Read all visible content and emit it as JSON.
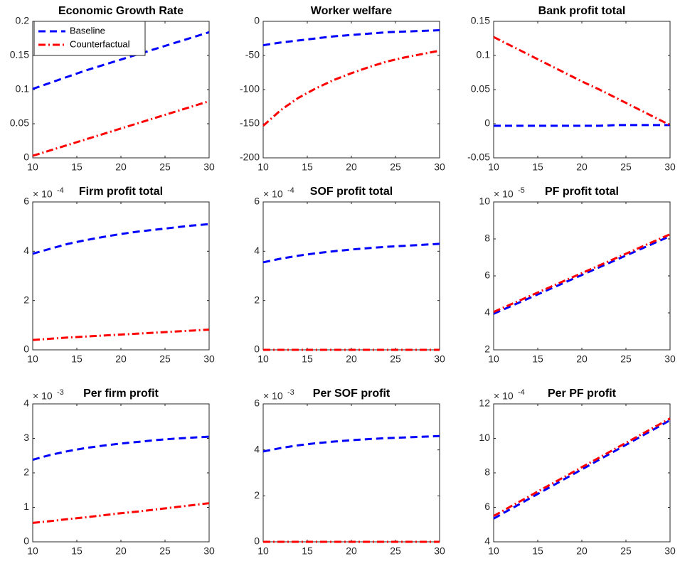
{
  "chart_data": [
    {
      "type": "line",
      "title": "Economic Growth Rate",
      "x": [
        10,
        12,
        14,
        16,
        18,
        20,
        22,
        24,
        26,
        28,
        30
      ],
      "xlim": [
        10,
        30
      ],
      "xticks": [
        10,
        15,
        20,
        25,
        30
      ],
      "ylim": [
        0,
        0.2
      ],
      "yticks": [
        0,
        0.05,
        0.1,
        0.15,
        0.2
      ],
      "legend": "northwest",
      "series": [
        {
          "name": "Baseline",
          "color": "#0000ff",
          "dash": "dashed",
          "values": [
            0.101,
            0.11,
            0.119,
            0.128,
            0.136,
            0.144,
            0.152,
            0.16,
            0.168,
            0.176,
            0.184
          ]
        },
        {
          "name": "Counterfactual",
          "color": "#ff0000",
          "dash": "dashdot",
          "values": [
            0.003,
            0.011,
            0.019,
            0.027,
            0.035,
            0.043,
            0.051,
            0.059,
            0.067,
            0.075,
            0.083
          ]
        }
      ]
    },
    {
      "type": "line",
      "title": "Worker welfare",
      "x": [
        10,
        12,
        14,
        16,
        18,
        20,
        22,
        24,
        26,
        28,
        30
      ],
      "xlim": [
        10,
        30
      ],
      "xticks": [
        10,
        15,
        20,
        25,
        30
      ],
      "ylim": [
        -200,
        0
      ],
      "yticks": [
        -200,
        -150,
        -100,
        -50,
        0
      ],
      "series": [
        {
          "color": "#0000ff",
          "dash": "dashed",
          "values": [
            -35,
            -31,
            -28,
            -25,
            -22,
            -20,
            -18,
            -16,
            -15,
            -14,
            -13
          ]
        },
        {
          "color": "#ff0000",
          "dash": "dashdot",
          "values": [
            -153,
            -130,
            -112,
            -98,
            -86,
            -76,
            -67,
            -59,
            -53,
            -48,
            -43
          ]
        }
      ]
    },
    {
      "type": "line",
      "title": "Bank profit total",
      "x": [
        10,
        12,
        14,
        16,
        18,
        20,
        22,
        24,
        26,
        28,
        30
      ],
      "xlim": [
        10,
        30
      ],
      "xticks": [
        10,
        15,
        20,
        25,
        30
      ],
      "ylim": [
        -0.05,
        0.15
      ],
      "yticks": [
        -0.05,
        0,
        0.05,
        0.1,
        0.15
      ],
      "series": [
        {
          "color": "#0000ff",
          "dash": "dashed",
          "values": [
            -0.003,
            -0.003,
            -0.003,
            -0.003,
            -0.003,
            -0.003,
            -0.003,
            -0.002,
            -0.002,
            -0.002,
            -0.002
          ]
        },
        {
          "color": "#ff0000",
          "dash": "dashdot",
          "values": [
            0.127,
            0.114,
            0.101,
            0.088,
            0.075,
            0.062,
            0.05,
            0.037,
            0.024,
            0.011,
            -0.002
          ]
        }
      ]
    },
    {
      "type": "line",
      "title": "Firm profit total",
      "y_multiplier": {
        "base": "× 10",
        "exponent": "-4"
      },
      "x": [
        10,
        12,
        14,
        16,
        18,
        20,
        22,
        24,
        26,
        28,
        30
      ],
      "xlim": [
        10,
        30
      ],
      "xticks": [
        10,
        15,
        20,
        25,
        30
      ],
      "ylim": [
        0,
        6
      ],
      "yticks": [
        0,
        2,
        4,
        6
      ],
      "series": [
        {
          "color": "#0000ff",
          "dash": "dashed",
          "values": [
            3.9,
            4.1,
            4.3,
            4.45,
            4.58,
            4.7,
            4.8,
            4.88,
            4.96,
            5.04,
            5.1
          ]
        },
        {
          "color": "#ff0000",
          "dash": "dashdot",
          "values": [
            0.4,
            0.45,
            0.5,
            0.54,
            0.58,
            0.62,
            0.66,
            0.7,
            0.74,
            0.78,
            0.82
          ]
        }
      ]
    },
    {
      "type": "line",
      "title": "SOF profit total",
      "y_multiplier": {
        "base": "× 10",
        "exponent": "-4"
      },
      "x": [
        10,
        12,
        14,
        16,
        18,
        20,
        22,
        24,
        26,
        28,
        30
      ],
      "xlim": [
        10,
        30
      ],
      "xticks": [
        10,
        15,
        20,
        25,
        30
      ],
      "ylim": [
        0,
        6
      ],
      "yticks": [
        0,
        2,
        4,
        6
      ],
      "series": [
        {
          "color": "#0000ff",
          "dash": "dashed",
          "values": [
            3.55,
            3.7,
            3.82,
            3.92,
            4.0,
            4.07,
            4.13,
            4.18,
            4.22,
            4.26,
            4.3
          ]
        },
        {
          "color": "#ff0000",
          "dash": "dashdot",
          "values": [
            0,
            0,
            0,
            0,
            0,
            0,
            0,
            0,
            0,
            0,
            0
          ]
        }
      ]
    },
    {
      "type": "line",
      "title": "PF profit total",
      "y_multiplier": {
        "base": "× 10",
        "exponent": "-5"
      },
      "x": [
        10,
        12,
        14,
        16,
        18,
        20,
        22,
        24,
        26,
        28,
        30
      ],
      "xlim": [
        10,
        30
      ],
      "xticks": [
        10,
        15,
        20,
        25,
        30
      ],
      "ylim": [
        2,
        10
      ],
      "yticks": [
        2,
        4,
        6,
        8,
        10
      ],
      "series": [
        {
          "color": "#0000ff",
          "dash": "dashed",
          "values": [
            3.95,
            4.37,
            4.79,
            5.21,
            5.63,
            6.05,
            6.47,
            6.89,
            7.31,
            7.73,
            8.15
          ]
        },
        {
          "color": "#ff0000",
          "dash": "dashdot",
          "values": [
            4.05,
            4.47,
            4.89,
            5.31,
            5.73,
            6.15,
            6.57,
            6.99,
            7.41,
            7.83,
            8.25
          ]
        }
      ]
    },
    {
      "type": "line",
      "title": "Per firm profit",
      "y_multiplier": {
        "base": "× 10",
        "exponent": "-3"
      },
      "x": [
        10,
        12,
        14,
        16,
        18,
        20,
        22,
        24,
        26,
        28,
        30
      ],
      "xlim": [
        10,
        30
      ],
      "xticks": [
        10,
        15,
        20,
        25,
        30
      ],
      "ylim": [
        0,
        4
      ],
      "yticks": [
        0,
        1,
        2,
        3,
        4
      ],
      "series": [
        {
          "color": "#0000ff",
          "dash": "dashed",
          "values": [
            2.38,
            2.52,
            2.63,
            2.72,
            2.79,
            2.85,
            2.9,
            2.95,
            2.99,
            3.02,
            3.05
          ]
        },
        {
          "color": "#ff0000",
          "dash": "dashdot",
          "values": [
            0.55,
            0.6,
            0.66,
            0.71,
            0.77,
            0.83,
            0.88,
            0.94,
            1.0,
            1.06,
            1.12
          ]
        }
      ]
    },
    {
      "type": "line",
      "title": "Per SOF profit",
      "y_multiplier": {
        "base": "× 10",
        "exponent": "-3"
      },
      "x": [
        10,
        12,
        14,
        16,
        18,
        20,
        22,
        24,
        26,
        28,
        30
      ],
      "xlim": [
        10,
        30
      ],
      "xticks": [
        10,
        15,
        20,
        25,
        30
      ],
      "ylim": [
        0,
        6
      ],
      "yticks": [
        0,
        2,
        4,
        6
      ],
      "series": [
        {
          "color": "#0000ff",
          "dash": "dashed",
          "values": [
            3.93,
            4.08,
            4.2,
            4.29,
            4.36,
            4.42,
            4.47,
            4.51,
            4.54,
            4.57,
            4.6
          ]
        },
        {
          "color": "#ff0000",
          "dash": "dashdot",
          "values": [
            0,
            0,
            0,
            0,
            0,
            0,
            0,
            0,
            0,
            0,
            0
          ]
        }
      ]
    },
    {
      "type": "line",
      "title": "Per PF profit",
      "y_multiplier": {
        "base": "× 10",
        "exponent": "-4"
      },
      "x": [
        10,
        12,
        14,
        16,
        18,
        20,
        22,
        24,
        26,
        28,
        30
      ],
      "xlim": [
        10,
        30
      ],
      "xticks": [
        10,
        15,
        20,
        25,
        30
      ],
      "ylim": [
        4,
        12
      ],
      "yticks": [
        4,
        6,
        8,
        10,
        12
      ],
      "series": [
        {
          "color": "#0000ff",
          "dash": "dashed",
          "values": [
            5.35,
            5.92,
            6.49,
            7.06,
            7.63,
            8.2,
            8.77,
            9.34,
            9.91,
            10.48,
            11.05
          ]
        },
        {
          "color": "#ff0000",
          "dash": "dashdot",
          "values": [
            5.5,
            6.07,
            6.63,
            7.2,
            7.76,
            8.33,
            8.89,
            9.46,
            10.02,
            10.59,
            11.15
          ]
        }
      ]
    }
  ]
}
